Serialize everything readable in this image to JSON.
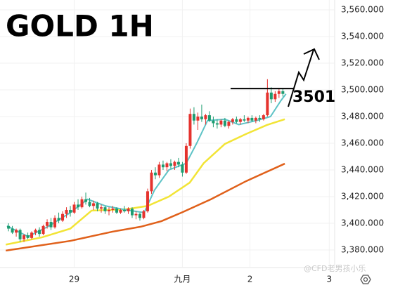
{
  "chart_data": {
    "type": "candlestick",
    "title": "GOLD 1H",
    "x": [
      0,
      1,
      2,
      3,
      4,
      5,
      6,
      7,
      8,
      9,
      10,
      11,
      12,
      13,
      14,
      15,
      16,
      17,
      18,
      19,
      20,
      21,
      22,
      23,
      24,
      25,
      26,
      27,
      28,
      29,
      30,
      31,
      32,
      33,
      34,
      35,
      36,
      37,
      38,
      39,
      40,
      41,
      42,
      43,
      44,
      45,
      46,
      47,
      48,
      49,
      50,
      51,
      52,
      53,
      54,
      55,
      56,
      57,
      58,
      59,
      60,
      61,
      62,
      63,
      64,
      65,
      66,
      67,
      68,
      69,
      70,
      71
    ],
    "open": [
      3398,
      3396,
      3393,
      3395,
      3388,
      3391,
      3389,
      3393,
      3395,
      3392,
      3398,
      3401,
      3397,
      3404,
      3402,
      3407,
      3410,
      3408,
      3414,
      3412,
      3418,
      3416,
      3413,
      3415,
      3411,
      3412,
      3409,
      3410,
      3411,
      3408,
      3410,
      3409,
      3411,
      3406,
      3407,
      3404,
      3409,
      3424,
      3438,
      3436,
      3444,
      3442,
      3445,
      3443,
      3446,
      3444,
      3438,
      3458,
      3482,
      3477,
      3480,
      3478,
      3481,
      3477,
      3475,
      3474,
      3477,
      3473,
      3476,
      3478,
      3476,
      3478,
      3477,
      3479,
      3477,
      3479,
      3478,
      3481,
      3498,
      3493,
      3497,
      3499
    ],
    "high": [
      3400,
      3398,
      3396,
      3396,
      3392,
      3393,
      3394,
      3396,
      3397,
      3399,
      3403,
      3404,
      3406,
      3408,
      3409,
      3412,
      3413,
      3416,
      3418,
      3420,
      3423,
      3419,
      3417,
      3416,
      3414,
      3413,
      3412,
      3413,
      3412,
      3411,
      3413,
      3412,
      3412,
      3409,
      3408,
      3410,
      3426,
      3440,
      3442,
      3446,
      3447,
      3446,
      3448,
      3447,
      3449,
      3446,
      3460,
      3486,
      3487,
      3483,
      3489,
      3482,
      3484,
      3480,
      3478,
      3478,
      3479,
      3477,
      3479,
      3480,
      3479,
      3481,
      3480,
      3481,
      3480,
      3481,
      3482,
      3508,
      3502,
      3499,
      3501,
      3501
    ],
    "low": [
      3394,
      3392,
      3390,
      3386,
      3386,
      3388,
      3388,
      3391,
      3390,
      3391,
      3396,
      3395,
      3396,
      3400,
      3401,
      3404,
      3405,
      3407,
      3410,
      3411,
      3414,
      3412,
      3410,
      3409,
      3408,
      3407,
      3406,
      3408,
      3407,
      3407,
      3408,
      3407,
      3404,
      3403,
      3402,
      3403,
      3408,
      3422,
      3433,
      3434,
      3440,
      3439,
      3441,
      3440,
      3442,
      3435,
      3437,
      3456,
      3474,
      3470,
      3476,
      3474,
      3476,
      3472,
      3471,
      3472,
      3472,
      3471,
      3474,
      3475,
      3474,
      3476,
      3475,
      3476,
      3475,
      3476,
      3477,
      3480,
      3490,
      3491,
      3494,
      3495
    ],
    "close": [
      3396,
      3393,
      3395,
      3388,
      3391,
      3389,
      3393,
      3395,
      3392,
      3398,
      3401,
      3397,
      3404,
      3402,
      3407,
      3410,
      3408,
      3414,
      3412,
      3418,
      3416,
      3413,
      3415,
      3411,
      3412,
      3409,
      3410,
      3411,
      3408,
      3410,
      3409,
      3411,
      3406,
      3407,
      3404,
      3409,
      3424,
      3438,
      3436,
      3444,
      3442,
      3445,
      3443,
      3446,
      3444,
      3438,
      3458,
      3482,
      3477,
      3480,
      3478,
      3481,
      3477,
      3475,
      3474,
      3477,
      3473,
      3476,
      3478,
      3476,
      3478,
      3477,
      3479,
      3477,
      3479,
      3478,
      3481,
      3498,
      3493,
      3497,
      3499,
      3497
    ],
    "up_color": "#e5332e",
    "down_color": "#1e9c70",
    "lines": [
      {
        "color": "#e0601a",
        "x": [
          -0.7,
          16,
          26.9,
          34.2,
          39.6,
          45.1,
          52.4,
          61.5,
          71.5
        ],
        "values": [
          3379.5,
          3386.8,
          3393.7,
          3397.4,
          3401.6,
          3408.4,
          3418,
          3431.6,
          3444.7
        ]
      },
      {
        "color": "#f2e436",
        "x": [
          -0.7,
          8.7,
          16,
          21.5,
          30.5,
          36,
          41.5,
          46.9,
          50.5,
          56,
          61.5,
          66.9,
          71.5
        ],
        "values": [
          3384,
          3389.5,
          3396,
          3409.5,
          3410.5,
          3413,
          3420,
          3430.5,
          3445,
          3459.5,
          3467,
          3473.7,
          3478
        ]
      },
      {
        "color": "#5ec3c6",
        "x": [
          -0.4,
          5.1,
          10.5,
          16,
          20.5,
          25.1,
          30.5,
          35.1,
          37.8,
          41.5,
          46,
          48.7,
          51.5,
          56,
          59.6,
          64.2,
          67.8,
          70.5,
          71.8
        ],
        "values": [
          3398,
          3390,
          3398,
          3408,
          3418,
          3413,
          3410,
          3408,
          3425,
          3440,
          3445,
          3460,
          3477,
          3478,
          3474,
          3477,
          3480,
          3492,
          3497
        ]
      }
    ],
    "xlim": [
      -2.2,
      84.4
    ],
    "xticks": [
      {
        "value": 17,
        "label": "29"
      },
      {
        "value": 45,
        "label": "九月"
      },
      {
        "value": 62.5,
        "label": "2"
      },
      {
        "value": 83,
        "label": "3"
      }
    ],
    "ylim": [
      3368.4,
      3567.4
    ],
    "yticks": [
      {
        "value": 3560,
        "label": "3,560.000"
      },
      {
        "value": 3540,
        "label": "3,540.000"
      },
      {
        "value": 3520,
        "label": "3,520.000"
      },
      {
        "value": 3500,
        "label": "3,500.000"
      },
      {
        "value": 3480,
        "label": "3,480.000"
      },
      {
        "value": 3460,
        "label": "3,460.000"
      },
      {
        "value": 3440,
        "label": "3,440.000"
      },
      {
        "value": 3420,
        "label": "3,420.000"
      },
      {
        "value": 3400,
        "label": "3,400.000"
      },
      {
        "value": 3380,
        "label": "3,380.000"
      }
    ],
    "grid": true,
    "level": 3501,
    "watermark": "@CFD老男孩小乐"
  }
}
